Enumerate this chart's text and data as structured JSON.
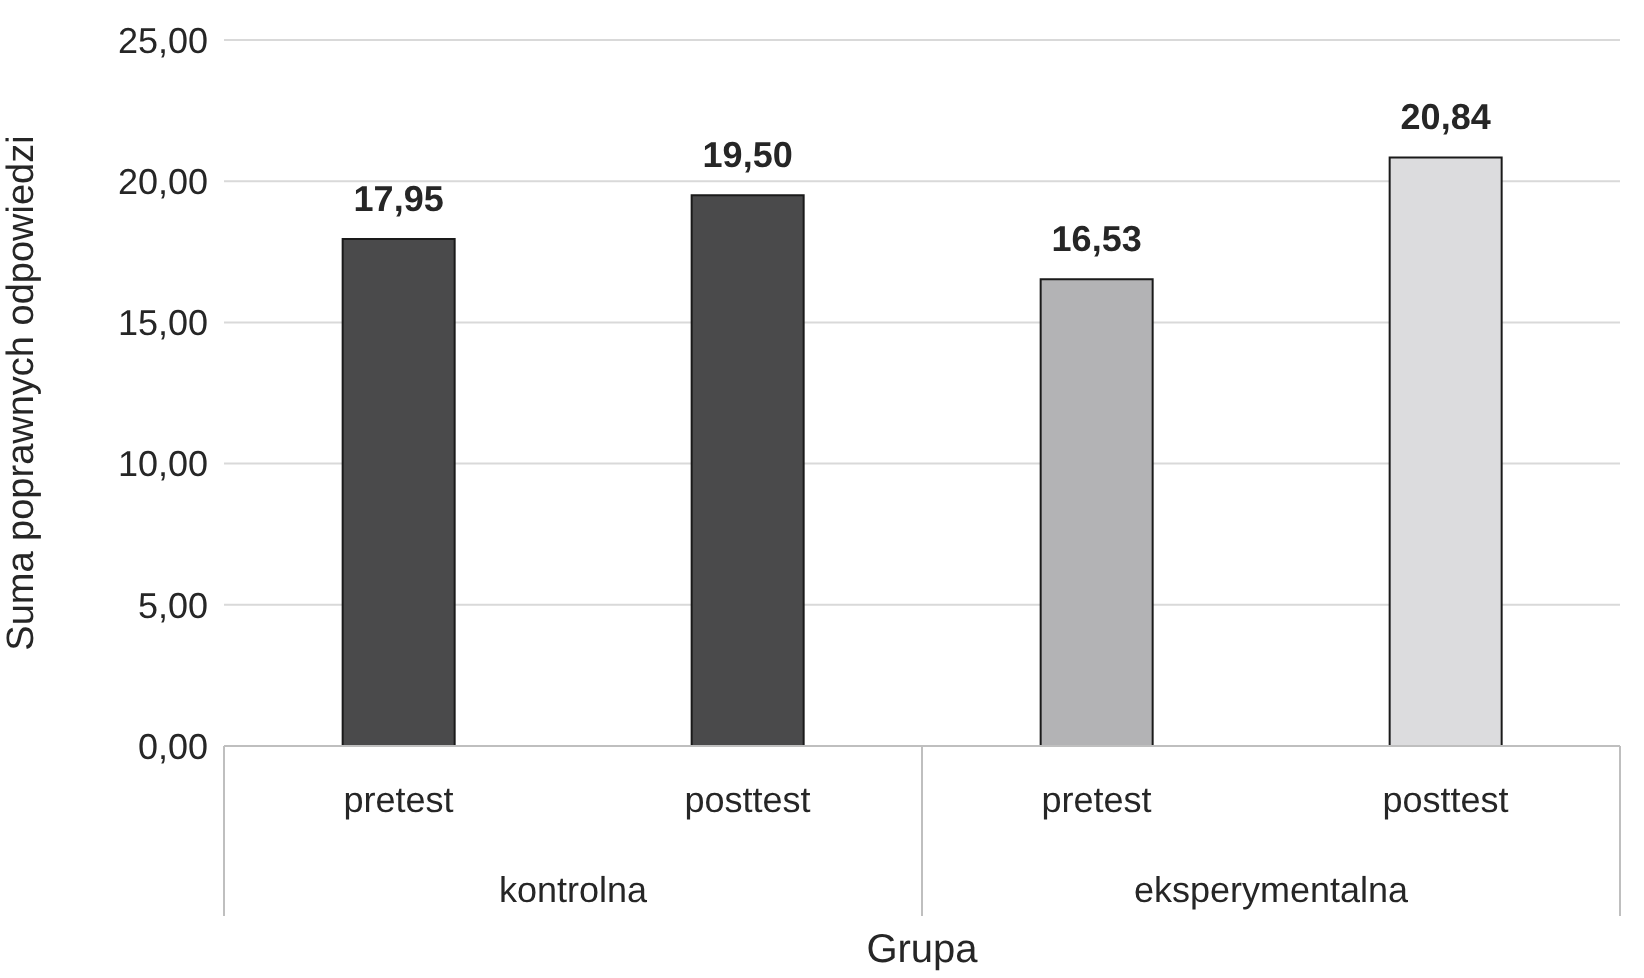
{
  "chart_data": {
    "type": "bar",
    "categories": [
      "pretest",
      "posttest",
      "pretest",
      "posttest"
    ],
    "values": [
      17.95,
      19.5,
      16.53,
      20.84
    ],
    "colors": [
      "#4a4a4b",
      "#4a4a4b",
      "#b3b3b5",
      "#dcdcde"
    ],
    "value_labels": [
      "17,95",
      "19,50",
      "16,53",
      "20,84"
    ],
    "xlabel": "Grupa",
    "ylabel": "Suma poprawnych odpowiedzi",
    "annotations": [
      "kontrolna",
      "eksperymentalna"
    ],
    "ylim": [
      0,
      25
    ],
    "yticks": [
      {
        "value": 0,
        "label": "0,00"
      },
      {
        "value": 5,
        "label": "5,00"
      },
      {
        "value": 10,
        "label": "10,00"
      },
      {
        "value": 15,
        "label": "15,00"
      },
      {
        "value": 20,
        "label": "20,00"
      },
      {
        "value": 25,
        "label": "25,00"
      }
    ],
    "grid": "y"
  }
}
